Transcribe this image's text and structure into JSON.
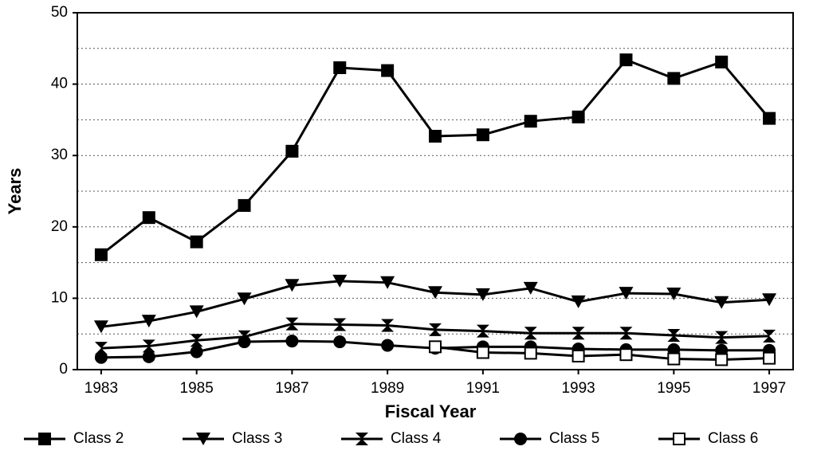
{
  "chart_data": {
    "type": "line",
    "x_label": "Fiscal Year",
    "y_label": "Years",
    "x": [
      1983,
      1984,
      1985,
      1986,
      1987,
      1988,
      1989,
      1990,
      1991,
      1992,
      1993,
      1994,
      1995,
      1996,
      1997
    ],
    "xlim": [
      1982.5,
      1997.5
    ],
    "xticks": [
      1983,
      1985,
      1987,
      1989,
      1991,
      1993,
      1995,
      1997
    ],
    "ylim": [
      0,
      50
    ],
    "yticks": [
      0,
      10,
      20,
      30,
      40,
      50
    ],
    "minor_yticks": [
      5,
      15,
      25,
      35,
      45
    ],
    "grid": true,
    "legend": "bottom",
    "series": [
      {
        "name": "Class 2",
        "color": "#000000",
        "marker": "square",
        "values": [
          16.1,
          21.3,
          17.9,
          23.0,
          30.6,
          42.3,
          41.9,
          32.7,
          32.9,
          34.8,
          35.4,
          43.4,
          40.8,
          43.1,
          35.2
        ]
      },
      {
        "name": "Class 3",
        "color": "#000000",
        "marker": "triangle-down",
        "values": [
          6.0,
          6.8,
          8.1,
          9.9,
          11.8,
          12.4,
          12.2,
          10.8,
          10.5,
          11.4,
          9.5,
          10.7,
          10.6,
          9.4,
          9.8
        ]
      },
      {
        "name": "Class 4",
        "color": "#000000",
        "marker": "bowtie",
        "values": [
          3.0,
          3.3,
          4.1,
          4.6,
          6.4,
          6.3,
          6.2,
          5.6,
          5.4,
          5.1,
          5.1,
          5.1,
          4.8,
          4.5,
          4.7
        ]
      },
      {
        "name": "Class 5",
        "color": "#000000",
        "marker": "circle",
        "values": [
          1.7,
          1.8,
          2.5,
          3.9,
          4.0,
          3.9,
          3.4,
          3.0,
          3.2,
          3.2,
          2.9,
          2.8,
          2.8,
          2.7,
          2.7
        ]
      },
      {
        "name": "Class 6",
        "color": "#000000",
        "marker": "open-square",
        "values": [
          null,
          null,
          null,
          null,
          null,
          null,
          null,
          3.2,
          2.4,
          2.3,
          1.9,
          2.1,
          1.5,
          1.4,
          1.6
        ]
      }
    ]
  }
}
